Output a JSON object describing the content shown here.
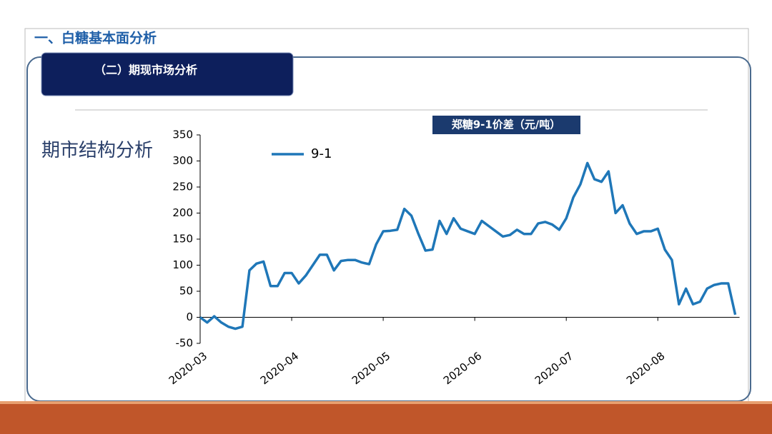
{
  "slide": {
    "title": "一、白糖基本面分析",
    "tab": "（二）期现市场分析",
    "side_label": "期市结构分析"
  },
  "chart_data": {
    "type": "line",
    "title": "郑糖9-1价差（元/吨）",
    "categories": [
      "2020-03",
      null,
      null,
      null,
      null,
      null,
      null,
      null,
      null,
      null,
      null,
      null,
      null,
      "2020-04",
      null,
      null,
      null,
      null,
      null,
      null,
      null,
      null,
      null,
      null,
      null,
      null,
      "2020-05",
      null,
      null,
      null,
      null,
      null,
      null,
      null,
      null,
      null,
      null,
      null,
      null,
      "2020-06",
      null,
      null,
      null,
      null,
      null,
      null,
      null,
      null,
      null,
      null,
      null,
      null,
      "2020-07",
      null,
      null,
      null,
      null,
      null,
      null,
      null,
      null,
      null,
      null,
      null,
      null,
      "2020-08",
      null,
      null,
      null,
      null,
      null,
      null,
      null,
      null,
      null,
      null,
      null
    ],
    "series": [
      {
        "name": "9-1",
        "color": "#1f77b8",
        "values": [
          0,
          -10,
          2,
          -10,
          -18,
          -22,
          -18,
          90,
          103,
          107,
          60,
          60,
          85,
          85,
          65,
          80,
          100,
          120,
          120,
          90,
          108,
          110,
          110,
          105,
          102,
          140,
          165,
          166,
          168,
          208,
          195,
          160,
          128,
          130,
          185,
          160,
          190,
          170,
          165,
          160,
          185,
          175,
          165,
          155,
          158,
          168,
          160,
          160,
          180,
          183,
          178,
          168,
          190,
          230,
          255,
          296,
          265,
          260,
          280,
          200,
          215,
          180,
          160,
          165,
          165,
          170,
          130,
          110,
          25,
          55,
          25,
          30,
          55,
          62,
          65,
          65,
          5
        ]
      }
    ],
    "ylim": [
      -50,
      350
    ],
    "yticks": [
      -50,
      0,
      50,
      100,
      150,
      200,
      250,
      300,
      350
    ],
    "legend": "upper-left"
  }
}
